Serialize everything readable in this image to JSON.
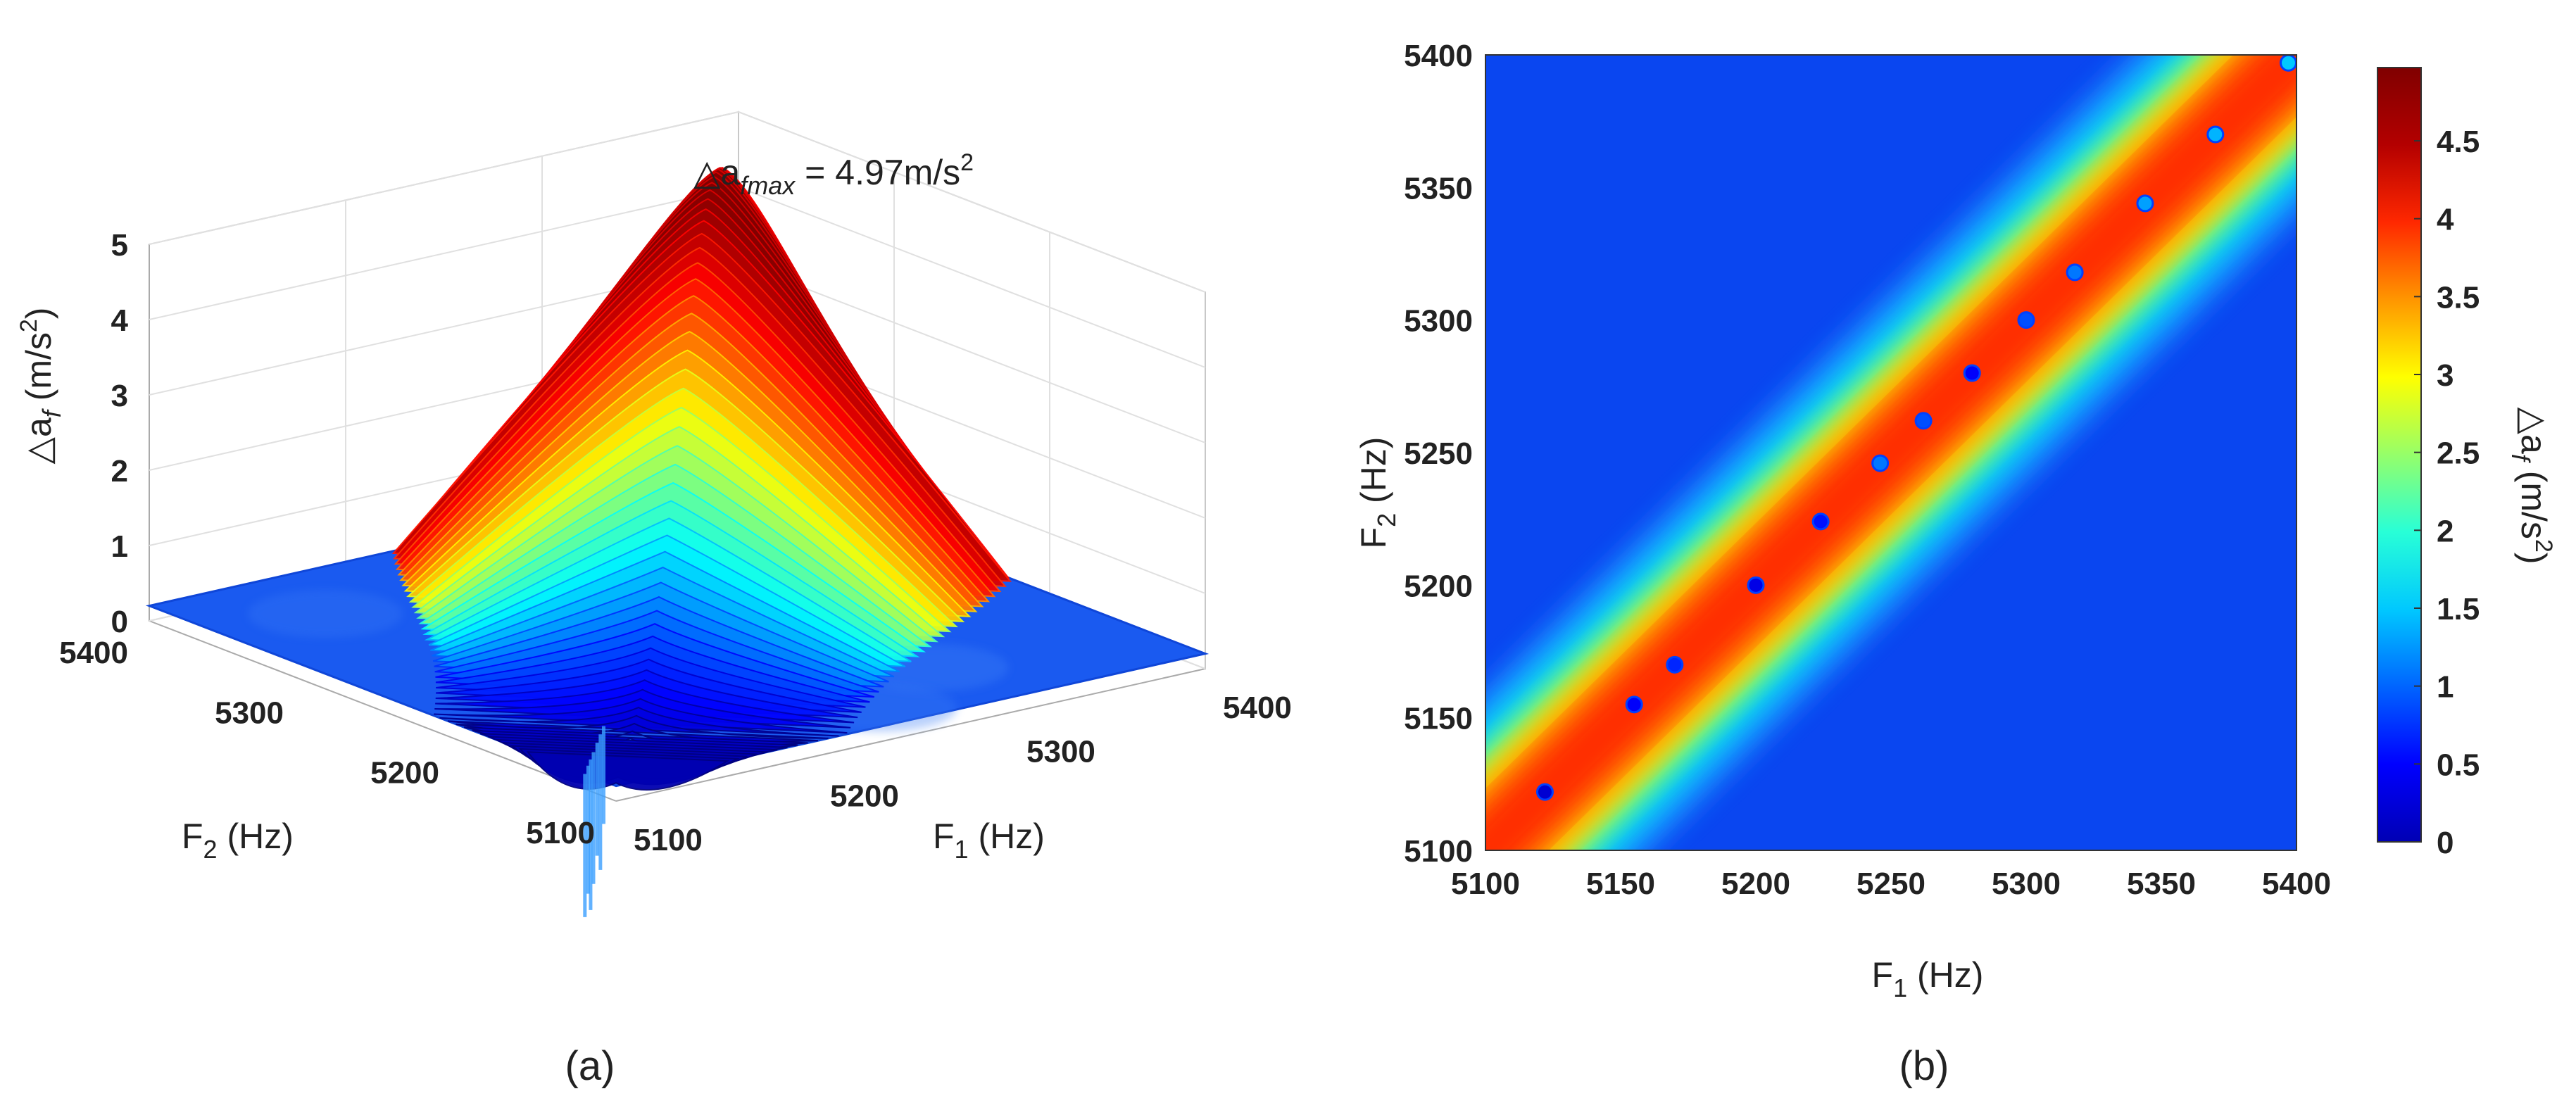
{
  "figure": {
    "captions": [
      "(a)",
      "(b)"
    ]
  },
  "chart_data": [
    {
      "type": "surface3d",
      "panel": "a",
      "xlabel": {
        "main": "F",
        "sub": "1",
        "unit": " (Hz)"
      },
      "ylabel": {
        "main": "F",
        "sub": "2",
        "unit": " (Hz)"
      },
      "zlabel": {
        "main": "△a",
        "sub": "f",
        "unit": " (m/s",
        "sup": "2",
        "end": ")"
      },
      "x_ticks": [
        "5100",
        "5200",
        "5300",
        "5400"
      ],
      "y_ticks": [
        "5100",
        "5200",
        "5300",
        "5400"
      ],
      "z_ticks": [
        "0",
        "1",
        "2",
        "3",
        "4",
        "5"
      ],
      "xlim": [
        5100,
        5400
      ],
      "ylim": [
        5100,
        5400
      ],
      "zlim": [
        0,
        5
      ],
      "annotation": {
        "prefix": "△a",
        "sub": "fmax",
        "text": " = 4.97m/s",
        "sup": "2"
      },
      "peak": {
        "F1": 5340,
        "F2": 5340,
        "value": 4.97
      },
      "ridge_axis": "F1 = F2",
      "baseline_level": 0.2,
      "colormap": "jet"
    },
    {
      "type": "heatmap",
      "panel": "b",
      "xlabel": {
        "main": "F",
        "sub": "1",
        "unit": " (Hz)"
      },
      "ylabel": {
        "main": "F",
        "sub": "2",
        "unit": " (Hz)"
      },
      "x_ticks": [
        "5100",
        "5150",
        "5200",
        "5250",
        "5300",
        "5350",
        "5400"
      ],
      "y_ticks": [
        "5100",
        "5150",
        "5200",
        "5250",
        "5300",
        "5350",
        "5400"
      ],
      "xlim": [
        5100,
        5400
      ],
      "ylim": [
        5100,
        5400
      ],
      "colorbar": {
        "label": {
          "main": "△a",
          "sub": "f",
          "unit": " (m/s",
          "sup": "2",
          "end": ")"
        },
        "ticks": [
          "0",
          "0.5",
          "1",
          "1.5",
          "2",
          "2.5",
          "3",
          "3.5",
          "4",
          "4.5"
        ],
        "range": [
          0,
          4.97
        ],
        "colors": [
          "#0000b4",
          "#0000ff",
          "#0064ff",
          "#00c8ff",
          "#28ffd7",
          "#96ff69",
          "#ffff00",
          "#ff9600",
          "#ff2800",
          "#b40000",
          "#800000"
        ]
      },
      "ridge_axis": "F1 = F2",
      "ridge_points": [
        {
          "F1": 5122,
          "F2": 5122,
          "value": 0.4
        },
        {
          "F1": 5155,
          "F2": 5155,
          "value": 0.6
        },
        {
          "F1": 5170,
          "F2": 5170,
          "value": 0.8
        },
        {
          "F1": 5200,
          "F2": 5200,
          "value": 0.5
        },
        {
          "F1": 5224,
          "F2": 5224,
          "value": 0.7
        },
        {
          "F1": 5246,
          "F2": 5246,
          "value": 1.2
        },
        {
          "F1": 5262,
          "F2": 5262,
          "value": 1.0
        },
        {
          "F1": 5280,
          "F2": 5280,
          "value": 0.6
        },
        {
          "F1": 5300,
          "F2": 5300,
          "value": 1.0
        },
        {
          "F1": 5318,
          "F2": 5318,
          "value": 1.2
        },
        {
          "F1": 5344,
          "F2": 5344,
          "value": 1.4
        },
        {
          "F1": 5370,
          "F2": 5370,
          "value": 1.5
        },
        {
          "F1": 5397,
          "F2": 5397,
          "value": 1.6
        }
      ]
    }
  ]
}
